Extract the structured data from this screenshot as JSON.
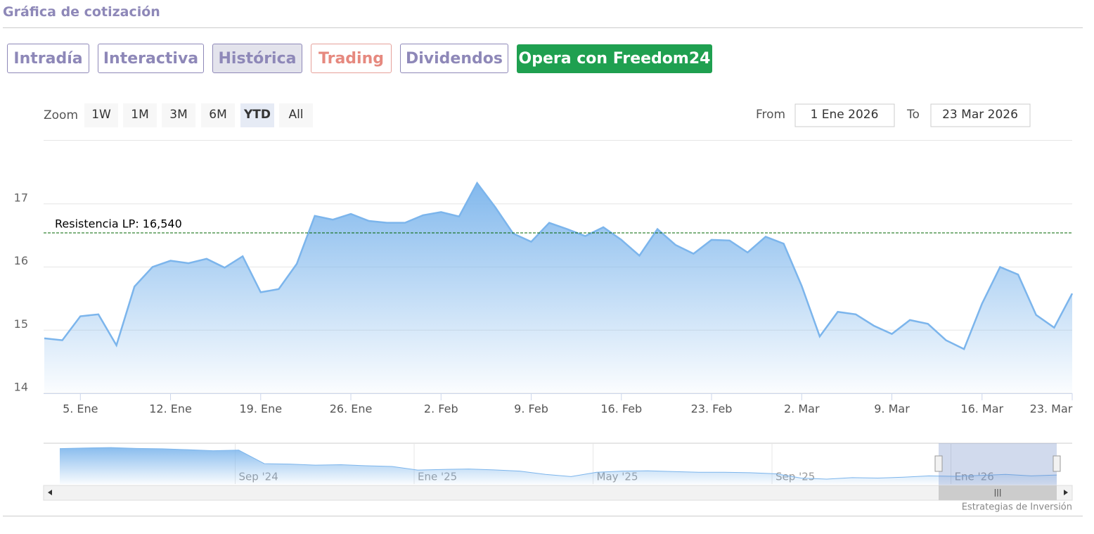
{
  "header": {
    "title": "Gráfica de cotización"
  },
  "tabs": [
    "Intradía",
    "Interactiva",
    "Histórica",
    "Trading",
    "Dividendos"
  ],
  "cta": "Opera con Freedom24",
  "range_selector": {
    "label": "Zoom",
    "buttons": [
      "1W",
      "1M",
      "3M",
      "6M",
      "YTD",
      "All"
    ],
    "from_label": "From",
    "from": "1 Ene 2026",
    "to_label": "To",
    "to": "23 Mar 2026"
  },
  "chart_data": {
    "type": "area",
    "color": "#7cb5ec",
    "categories": [
      null,
      null,
      "5. Ene",
      null,
      null,
      null,
      null,
      "12. Ene",
      null,
      null,
      null,
      null,
      "19. Ene",
      null,
      null,
      null,
      null,
      "26. Ene",
      null,
      null,
      null,
      null,
      "2. Feb",
      null,
      null,
      null,
      null,
      "9. Feb",
      null,
      null,
      null,
      null,
      "16. Feb",
      null,
      null,
      null,
      null,
      "23. Feb",
      null,
      null,
      null,
      null,
      "2. Mar",
      null,
      null,
      null,
      null,
      "9. Mar",
      null,
      null,
      null,
      null,
      "16. Mar",
      null,
      null,
      null,
      null,
      "23. Mar"
    ],
    "values": [
      14.87,
      14.84,
      15.22,
      15.25,
      14.76,
      15.69,
      16.0,
      16.1,
      16.06,
      16.13,
      15.99,
      16.17,
      15.6,
      15.65,
      16.05,
      16.81,
      16.75,
      16.84,
      16.73,
      16.7,
      16.7,
      16.82,
      16.87,
      16.8,
      17.33,
      16.95,
      16.53,
      16.4,
      16.7,
      16.6,
      16.49,
      16.63,
      16.43,
      16.18,
      16.6,
      16.35,
      16.21,
      16.43,
      16.42,
      16.23,
      16.48,
      16.37,
      15.7,
      14.9,
      15.29,
      15.25,
      15.07,
      14.94,
      15.16,
      15.1,
      14.84,
      14.7,
      15.42,
      16.0,
      15.88,
      15.24,
      15.04,
      15.58
    ],
    "ylim": [
      14,
      18
    ],
    "yticks": [
      14,
      15,
      16,
      17
    ],
    "grid": true,
    "annotations": [
      {
        "label": "Resistencia LP: 16,540",
        "value": 16.54,
        "color": "#006400"
      }
    ]
  },
  "navigator": {
    "type": "area",
    "color": "#7cb5ec",
    "categories": [
      null,
      null,
      null,
      null,
      null,
      null,
      null,
      "Sep '24",
      null,
      null,
      null,
      null,
      null,
      null,
      "Ene '25",
      null,
      null,
      null,
      null,
      null,
      null,
      "May '25",
      null,
      null,
      null,
      null,
      null,
      null,
      "Sep '25",
      null,
      null,
      null,
      null,
      null,
      null,
      "Ene '26",
      null,
      null,
      null,
      null
    ],
    "values": [
      27.5,
      27.8,
      28,
      27.6,
      27.4,
      27,
      26.5,
      26.8,
      20.5,
      20.3,
      19.8,
      20,
      19.5,
      19.2,
      17.5,
      17.8,
      18,
      17.6,
      17,
      15.5,
      14.5,
      16.5,
      17,
      17.2,
      16.8,
      16.5,
      16.5,
      16.3,
      15.8,
      13.8,
      13.3,
      14,
      13.8,
      14.2,
      14.8,
      14.6,
      15,
      15.5,
      14.8,
      15.2
    ],
    "ylim": [
      11,
      30
    ]
  },
  "credits": "Estrategias de Inversión"
}
